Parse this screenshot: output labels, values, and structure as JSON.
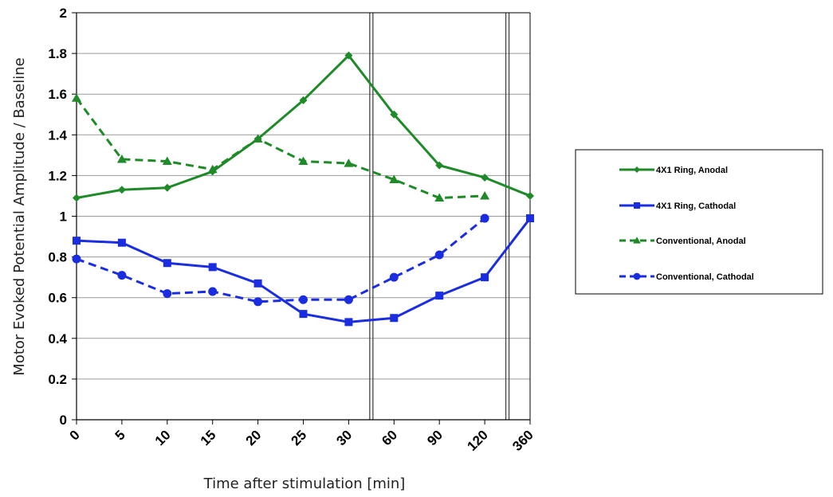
{
  "chart_data": {
    "type": "line",
    "title": "",
    "xlabel": "Time after stimulation [min]",
    "ylabel": "Motor Evoked Potential Amplitude / Baseline",
    "categories": [
      "0",
      "5",
      "10",
      "15",
      "20",
      "25",
      "30",
      "60",
      "90",
      "120",
      "360"
    ],
    "ylim": [
      0,
      2
    ],
    "yticks": [
      "0",
      "0.2",
      "0.4",
      "0.6",
      "0.8",
      "1",
      "1.2",
      "1.4",
      "1.6",
      "1.8",
      "2"
    ],
    "grid": true,
    "legend_position": "right",
    "series": [
      {
        "name": "4X1 Ring, Anodal",
        "color": "#1e8a28",
        "dash": "solid",
        "marker": "diamond",
        "values": [
          1.09,
          1.13,
          1.14,
          1.22,
          1.38,
          1.57,
          1.79,
          1.5,
          1.25,
          1.19,
          1.1
        ]
      },
      {
        "name": "4X1 Ring, Cathodal",
        "color": "#1a2de0",
        "dash": "solid",
        "marker": "square",
        "values": [
          0.88,
          0.87,
          0.77,
          0.75,
          0.67,
          0.52,
          0.48,
          0.5,
          0.61,
          0.7,
          0.99
        ]
      },
      {
        "name": "Conventional, Anodal",
        "color": "#1e8a28",
        "dash": "dashed",
        "marker": "triangle",
        "values": [
          1.58,
          1.28,
          1.27,
          1.23,
          1.38,
          1.27,
          1.26,
          1.18,
          1.09,
          1.1,
          null
        ]
      },
      {
        "name": "Conventional, Cathodal",
        "color": "#1a2de0",
        "dash": "dashed",
        "marker": "circle",
        "values": [
          0.79,
          0.71,
          0.62,
          0.63,
          0.58,
          0.59,
          0.59,
          0.7,
          0.81,
          0.99,
          null
        ]
      }
    ]
  }
}
